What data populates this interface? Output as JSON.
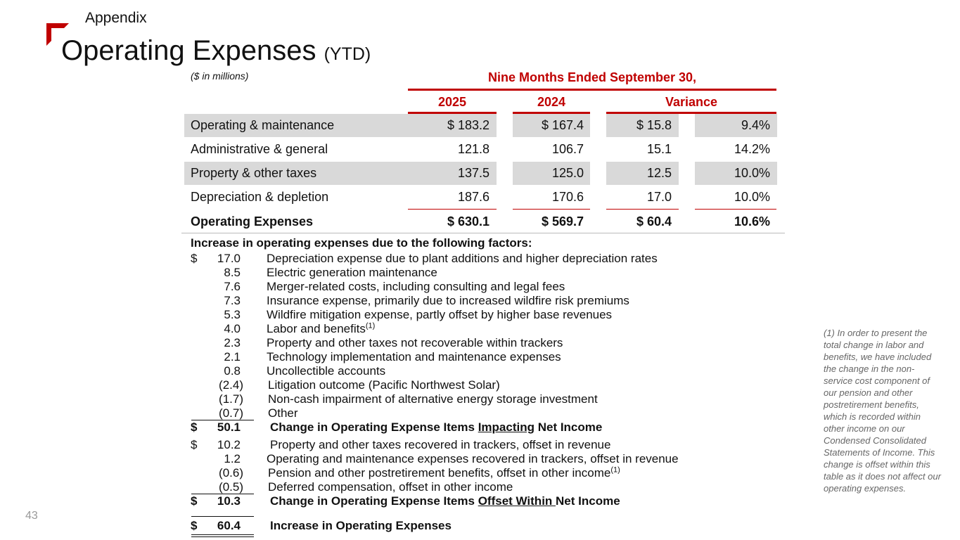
{
  "header": {
    "section": "Appendix",
    "title": "Operating Expenses",
    "title_suffix": "(YTD)"
  },
  "table": {
    "units_note": "($ in millions)",
    "period_header": "Nine Months Ended September 30,",
    "columns": [
      "2025",
      "2024",
      "Variance"
    ],
    "rows": [
      {
        "label": "Operating & maintenance",
        "y2025": "$ 183.2",
        "y2024": "$ 167.4",
        "var": "$ 15.8",
        "pct": "9.4%"
      },
      {
        "label": "Administrative & general",
        "y2025": "121.8",
        "y2024": "106.7",
        "var": "15.1",
        "pct": "14.2%"
      },
      {
        "label": "Property & other taxes",
        "y2025": "137.5",
        "y2024": "125.0",
        "var": "12.5",
        "pct": "10.0%"
      },
      {
        "label": "Depreciation & depletion",
        "y2025": "187.6",
        "y2024": "170.6",
        "var": "17.0",
        "pct": "10.0%"
      }
    ],
    "total": {
      "label": "Operating Expenses",
      "y2025": "$ 630.1",
      "y2024": "$ 569.7",
      "var": "$ 60.4",
      "pct": "10.6%"
    }
  },
  "factors": {
    "heading": "Increase in operating expenses due to the following factors:",
    "dollar": "$",
    "impacting": [
      {
        "amount": "17.0",
        "desc": "Depreciation expense due to plant additions and higher depreciation rates"
      },
      {
        "amount": "8.5",
        "desc": "Electric generation maintenance"
      },
      {
        "amount": "7.6",
        "desc": "Merger-related costs, including consulting and legal fees"
      },
      {
        "amount": "7.3",
        "desc": "Insurance expense, primarily due to increased wildfire risk premiums"
      },
      {
        "amount": "5.3",
        "desc": "Wildfire mitigation expense, partly offset by higher base revenues"
      },
      {
        "amount": "4.0",
        "desc": "Labor and benefits",
        "sup": "(1)"
      },
      {
        "amount": "2.3",
        "desc": "Property and other taxes not recoverable within trackers"
      },
      {
        "amount": "2.1",
        "desc": "Technology implementation and maintenance expenses"
      },
      {
        "amount": "0.8",
        "desc": "Uncollectible accounts"
      },
      {
        "amount": "(2.4)",
        "desc": "Litigation outcome (Pacific Northwest Solar)"
      },
      {
        "amount": "(1.7)",
        "desc": "Non-cash impairment of alternative energy storage investment"
      },
      {
        "amount": "(0.7)",
        "desc": "Other"
      }
    ],
    "impacting_total": {
      "amount": "50.1",
      "pre": "Change in Operating Expense Items ",
      "em": "Impacting",
      "post": " Net Income"
    },
    "offset": [
      {
        "amount": "10.2",
        "desc": "Property and other taxes recovered in trackers, offset in revenue"
      },
      {
        "amount": "1.2",
        "desc": "Operating and maintenance expenses recovered in trackers, offset in revenue"
      },
      {
        "amount": "(0.6)",
        "desc": "Pension and other postretirement benefits, offset in other income",
        "sup": "(1)"
      },
      {
        "amount": "(0.5)",
        "desc": "Deferred compensation, offset in other income"
      }
    ],
    "offset_total": {
      "amount": "10.3",
      "pre": "Change in Operating Expense Items ",
      "em": "Offset Within ",
      "post": "Net Income"
    },
    "grand_total": {
      "amount": "60.4",
      "label": "Increase in Operating Expenses"
    }
  },
  "footnote": "(1) In order to present the total change in labor and benefits, we have included the change in the non-service cost component of our pension and other postretirement benefits, which is recorded within other income on our Condensed Consolidated Statements of Income. This change is offset within this table as it does not affect our operating expenses.",
  "page_number": "43",
  "colors": {
    "accent": "#c00000",
    "row_shade": "#d9d9d9"
  }
}
